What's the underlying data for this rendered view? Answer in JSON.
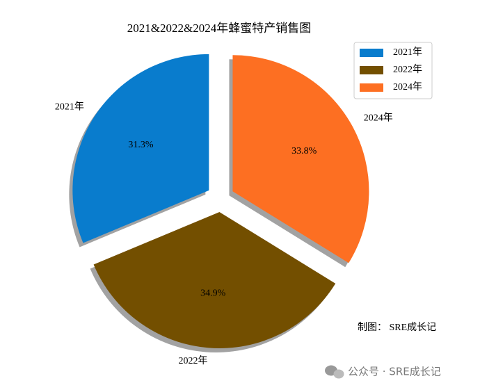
{
  "chart_data": {
    "type": "pie",
    "title": "2021&2022&2024年蜂蜜特产销售图",
    "categories": [
      "2021年",
      "2022年",
      "2024年"
    ],
    "values": [
      31.3,
      34.9,
      33.8
    ],
    "value_labels": [
      "31.3%",
      "34.9%",
      "33.8%"
    ],
    "colors": [
      "#097ccd",
      "#734f00",
      "#fd6f22"
    ],
    "legend": "upper right",
    "shadow": true,
    "annotations": [
      "制图： SRE成长记"
    ],
    "watermark": "公众号 · SRE成长记"
  }
}
